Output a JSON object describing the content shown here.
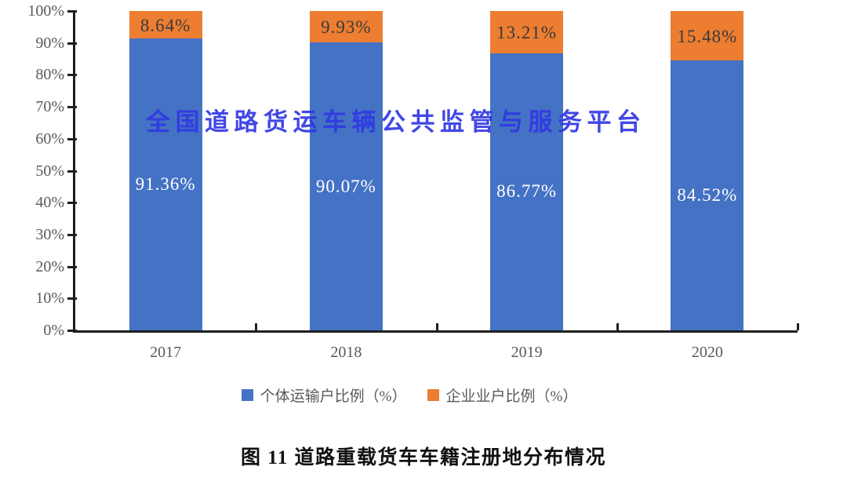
{
  "watermark": {
    "text": "全国道路货运车辆公共监管与服务平台",
    "color": "#3138e3"
  },
  "caption": "图 11 道路重载货车车籍注册地分布情况",
  "chart_data": {
    "type": "bar",
    "subtype": "stacked-column-100",
    "title": "",
    "xlabel": "",
    "ylabel": "",
    "categories": [
      "2017",
      "2018",
      "2019",
      "2020"
    ],
    "series": [
      {
        "name": "个体运输户比例（%）",
        "color": "#4472c4",
        "values": [
          91.36,
          90.07,
          86.77,
          84.52
        ],
        "labels": [
          "91.36%",
          "90.07%",
          "86.77%",
          "84.52%"
        ],
        "label_color": "#ffffff"
      },
      {
        "name": "企业业户比例（%）",
        "color": "#ed7d31",
        "values": [
          8.64,
          9.93,
          13.21,
          15.48
        ],
        "labels": [
          "8.64%",
          "9.93%",
          "13.21%",
          "15.48%"
        ],
        "label_color": "#3a3a3a"
      }
    ],
    "y_axis": {
      "min": 0,
      "max": 100,
      "tick_step": 10,
      "tick_labels": [
        "0%",
        "10%",
        "20%",
        "30%",
        "40%",
        "50%",
        "60%",
        "70%",
        "80%",
        "90%",
        "100%"
      ]
    },
    "grid": false,
    "legend_position": "bottom"
  }
}
